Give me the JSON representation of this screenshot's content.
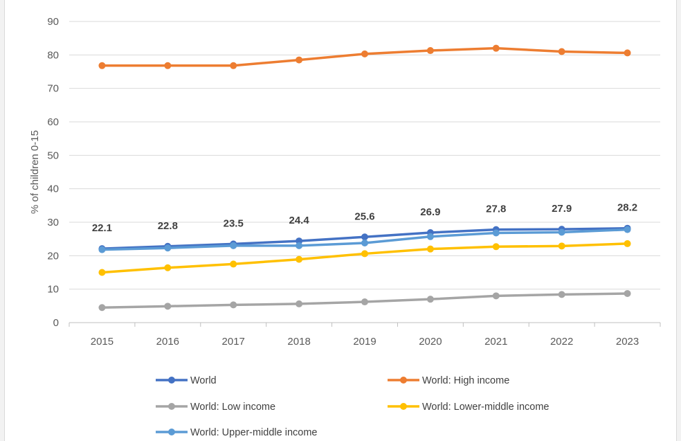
{
  "chart_data": {
    "type": "line",
    "title": "",
    "xlabel": "",
    "ylabel": "% of children 0-15",
    "ylim": [
      0,
      90
    ],
    "yticks": [
      0,
      10,
      20,
      30,
      40,
      50,
      60,
      70,
      80,
      90
    ],
    "grid": true,
    "legend_position": "bottom",
    "x": [
      "2015",
      "2016",
      "2017",
      "2018",
      "2019",
      "2020",
      "2021",
      "2022",
      "2023"
    ],
    "series": [
      {
        "name": "World",
        "color": "#4472c4",
        "values": [
          22.1,
          22.8,
          23.5,
          24.4,
          25.6,
          26.9,
          27.8,
          27.9,
          28.2
        ]
      },
      {
        "name": "World: High income",
        "color": "#ed7d31",
        "values": [
          76.8,
          76.8,
          76.8,
          78.5,
          80.3,
          81.3,
          82.0,
          81.0,
          80.6
        ]
      },
      {
        "name": "World: Low income",
        "color": "#a5a5a5",
        "values": [
          4.5,
          4.9,
          5.3,
          5.6,
          6.2,
          7.0,
          8.0,
          8.4,
          8.7
        ]
      },
      {
        "name": "World: Lower-middle income",
        "color": "#ffc000",
        "values": [
          15.0,
          16.4,
          17.5,
          18.9,
          20.6,
          22.0,
          22.7,
          22.9,
          23.6
        ]
      },
      {
        "name": "World: Upper-middle income",
        "color": "#5b9bd5",
        "values": [
          21.8,
          22.3,
          23.0,
          23.0,
          23.8,
          25.7,
          26.8,
          27.0,
          27.8
        ]
      }
    ],
    "data_labels": {
      "series": "World",
      "values": [
        "22.1",
        "22.8",
        "23.5",
        "24.4",
        "25.6",
        "26.9",
        "27.8",
        "27.9",
        "28.2"
      ]
    }
  }
}
